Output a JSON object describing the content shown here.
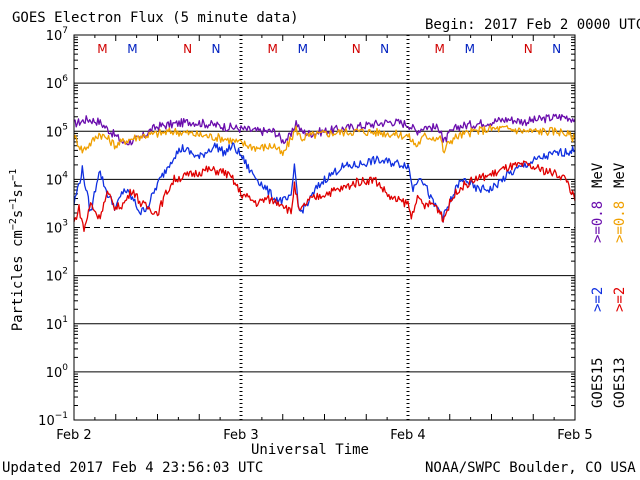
{
  "header": {
    "title": "GOES Electron Flux (5 minute data)",
    "begin": "Begin: 2017 Feb 2 0000 UTC"
  },
  "footer": {
    "updated": "Updated 2017 Feb  4 23:56:03 UTC",
    "credit": "NOAA/SWPC Boulder, CO USA"
  },
  "colors": {
    "goes15_high": "#6a0dad",
    "goes13_high": "#f0a000",
    "goes15_low": "#1030e0",
    "goes13_low": "#e00000",
    "marker_m": "#d00000",
    "marker_n": "#0020c0"
  },
  "chart_data": {
    "type": "line",
    "title": "GOES Electron Flux (5 minute data)",
    "xlabel": "Universal Time",
    "ylabel_base": "Particles cm",
    "ylabel_units": [
      {
        "text": "Particles cm"
      },
      {
        "sup": "−2"
      },
      {
        "text": "s"
      },
      {
        "sup": "−1"
      },
      {
        "text": "sr"
      },
      {
        "sup": "−1"
      }
    ],
    "xlim": [
      0,
      3
    ],
    "x_tick_labels": [
      "Feb 2",
      "Feb 3",
      "Feb 4",
      "Feb 5"
    ],
    "x_tick_values": [
      0,
      1,
      2,
      3
    ],
    "yscale": "log",
    "ylim": [
      -1,
      7
    ],
    "y_tick_labels": [
      {
        "base": "10",
        "exp": "7"
      },
      {
        "base": "10",
        "exp": "6"
      },
      {
        "base": "10",
        "exp": "5"
      },
      {
        "base": "10",
        "exp": "4"
      },
      {
        "base": "10",
        "exp": "3"
      },
      {
        "base": "10",
        "exp": "2"
      },
      {
        "base": "10",
        "exp": "1"
      },
      {
        "base": "10",
        "exp": "0"
      },
      {
        "base": "10",
        "exp": "−1"
      }
    ],
    "y_tick_values": [
      7,
      6,
      5,
      4,
      3,
      2,
      1,
      0,
      -1
    ],
    "threshold": {
      "value": 3,
      "style": "dashed"
    },
    "grid": true,
    "markers": [
      {
        "x": 0.17,
        "label": "M",
        "color": "#d00000"
      },
      {
        "x": 0.35,
        "label": "M",
        "color": "#0020c0"
      },
      {
        "x": 0.68,
        "label": "N",
        "color": "#d00000"
      },
      {
        "x": 0.85,
        "label": "N",
        "color": "#0020c0"
      },
      {
        "x": 1.19,
        "label": "M",
        "color": "#d00000"
      },
      {
        "x": 1.37,
        "label": "M",
        "color": "#0020c0"
      },
      {
        "x": 1.69,
        "label": "N",
        "color": "#d00000"
      },
      {
        "x": 1.86,
        "label": "N",
        "color": "#0020c0"
      },
      {
        "x": 2.19,
        "label": "M",
        "color": "#d00000"
      },
      {
        "x": 2.37,
        "label": "M",
        "color": "#0020c0"
      },
      {
        "x": 2.72,
        "label": "N",
        "color": "#d00000"
      },
      {
        "x": 2.89,
        "label": "N",
        "color": "#0020c0"
      }
    ],
    "legend": {
      "placement": "right",
      "groups": [
        {
          "name": "GOES15",
          "entries": [
            {
              "text": ">=2",
              "color": "#1030e0"
            },
            {
              "text": ">=0.8",
              "color": "#6a0dad"
            }
          ]
        },
        {
          "name": "GOES13",
          "entries": [
            {
              "text": ">=2",
              "color": "#e00000"
            },
            {
              "text": ">=0.8",
              "color": "#f0a000"
            }
          ]
        }
      ],
      "unit": "MeV"
    },
    "series": [
      {
        "name": "GOES15 >=0.8 MeV",
        "color": "#6a0dad",
        "x": [
          0.0,
          0.08,
          0.15,
          0.2,
          0.25,
          0.3,
          0.35,
          0.4,
          0.45,
          0.5,
          0.6,
          0.7,
          0.8,
          0.9,
          1.0,
          1.1,
          1.2,
          1.25,
          1.3,
          1.33,
          1.36,
          1.4,
          1.5,
          1.6,
          1.7,
          1.8,
          1.9,
          2.0,
          2.05,
          2.1,
          2.2,
          2.21,
          2.25,
          2.3,
          2.4,
          2.5,
          2.6,
          2.7,
          2.8,
          2.9,
          2.95,
          3.0
        ],
        "y": [
          5.15,
          5.25,
          5.2,
          5.05,
          4.9,
          4.75,
          4.8,
          4.85,
          5.0,
          5.1,
          5.15,
          5.2,
          5.15,
          5.1,
          5.05,
          5.0,
          5.0,
          4.8,
          4.9,
          5.2,
          5.0,
          4.95,
          5.0,
          5.05,
          5.1,
          5.15,
          5.2,
          5.15,
          5.0,
          5.1,
          5.05,
          4.75,
          4.95,
          5.1,
          5.15,
          5.2,
          5.25,
          5.2,
          5.25,
          5.3,
          5.3,
          5.25
        ]
      },
      {
        "name": "GOES13 >=0.8 MeV",
        "color": "#f0a000",
        "x": [
          0.0,
          0.05,
          0.1,
          0.15,
          0.2,
          0.25,
          0.3,
          0.35,
          0.4,
          0.5,
          0.6,
          0.7,
          0.8,
          0.9,
          1.0,
          1.1,
          1.2,
          1.25,
          1.3,
          1.33,
          1.36,
          1.4,
          1.5,
          1.6,
          1.7,
          1.8,
          1.9,
          2.0,
          2.05,
          2.1,
          2.2,
          2.21,
          2.25,
          2.3,
          2.4,
          2.5,
          2.6,
          2.7,
          2.8,
          2.9,
          2.95,
          3.0
        ],
        "y": [
          4.9,
          4.6,
          4.75,
          4.95,
          4.85,
          4.7,
          4.8,
          4.85,
          4.9,
          4.95,
          5.0,
          4.95,
          4.9,
          4.85,
          4.75,
          4.65,
          4.7,
          4.5,
          4.85,
          5.05,
          4.85,
          4.9,
          4.95,
          4.98,
          5.0,
          4.98,
          4.95,
          4.9,
          4.7,
          4.9,
          4.85,
          4.55,
          4.8,
          4.9,
          5.0,
          5.05,
          5.05,
          5.0,
          5.0,
          5.0,
          4.95,
          4.85
        ]
      },
      {
        "name": "GOES15 >=2 MeV",
        "color": "#1030e0",
        "x": [
          0.0,
          0.05,
          0.1,
          0.15,
          0.2,
          0.25,
          0.3,
          0.35,
          0.4,
          0.45,
          0.5,
          0.55,
          0.6,
          0.65,
          0.7,
          0.75,
          0.8,
          0.85,
          0.9,
          0.95,
          1.0,
          1.05,
          1.1,
          1.15,
          1.2,
          1.25,
          1.3,
          1.32,
          1.35,
          1.4,
          1.45,
          1.5,
          1.6,
          1.7,
          1.8,
          1.9,
          2.0,
          2.03,
          2.07,
          2.1,
          2.15,
          2.2,
          2.21,
          2.25,
          2.3,
          2.35,
          2.4,
          2.5,
          2.6,
          2.7,
          2.8,
          2.9,
          3.0
        ],
        "y": [
          3.5,
          4.2,
          3.3,
          4.2,
          3.7,
          3.4,
          3.8,
          3.6,
          3.3,
          3.5,
          3.9,
          4.2,
          4.5,
          4.65,
          4.55,
          4.45,
          4.6,
          4.7,
          4.55,
          4.7,
          4.5,
          4.2,
          4.0,
          3.8,
          3.6,
          3.55,
          3.6,
          4.3,
          3.3,
          3.5,
          3.8,
          4.0,
          4.25,
          4.3,
          4.4,
          4.35,
          4.3,
          3.8,
          4.1,
          3.9,
          3.5,
          3.3,
          3.2,
          3.5,
          3.9,
          4.0,
          3.8,
          3.8,
          4.1,
          4.3,
          4.45,
          4.55,
          4.6
        ]
      },
      {
        "name": "GOES13 >=2 MeV",
        "color": "#e00000",
        "x": [
          0.0,
          0.03,
          0.06,
          0.1,
          0.15,
          0.2,
          0.25,
          0.3,
          0.35,
          0.4,
          0.5,
          0.55,
          0.6,
          0.7,
          0.8,
          0.9,
          0.95,
          1.0,
          1.05,
          1.1,
          1.15,
          1.2,
          1.25,
          1.3,
          1.32,
          1.35,
          1.4,
          1.5,
          1.6,
          1.7,
          1.8,
          1.85,
          1.9,
          2.0,
          2.02,
          2.05,
          2.1,
          2.15,
          2.2,
          2.21,
          2.25,
          2.3,
          2.4,
          2.5,
          2.6,
          2.7,
          2.8,
          2.9,
          2.95,
          3.0
        ],
        "y": [
          3.1,
          3.4,
          2.95,
          3.5,
          3.2,
          3.7,
          3.4,
          3.5,
          3.8,
          3.5,
          3.3,
          3.7,
          4.0,
          4.1,
          4.2,
          4.15,
          4.0,
          3.7,
          3.6,
          3.5,
          3.6,
          3.55,
          3.5,
          3.3,
          3.9,
          3.3,
          3.55,
          3.7,
          3.8,
          3.95,
          4.0,
          3.8,
          3.6,
          3.5,
          3.2,
          3.6,
          3.45,
          3.5,
          3.3,
          3.15,
          3.5,
          3.8,
          4.0,
          4.1,
          4.25,
          4.3,
          4.2,
          4.1,
          4.0,
          3.55
        ]
      }
    ]
  }
}
